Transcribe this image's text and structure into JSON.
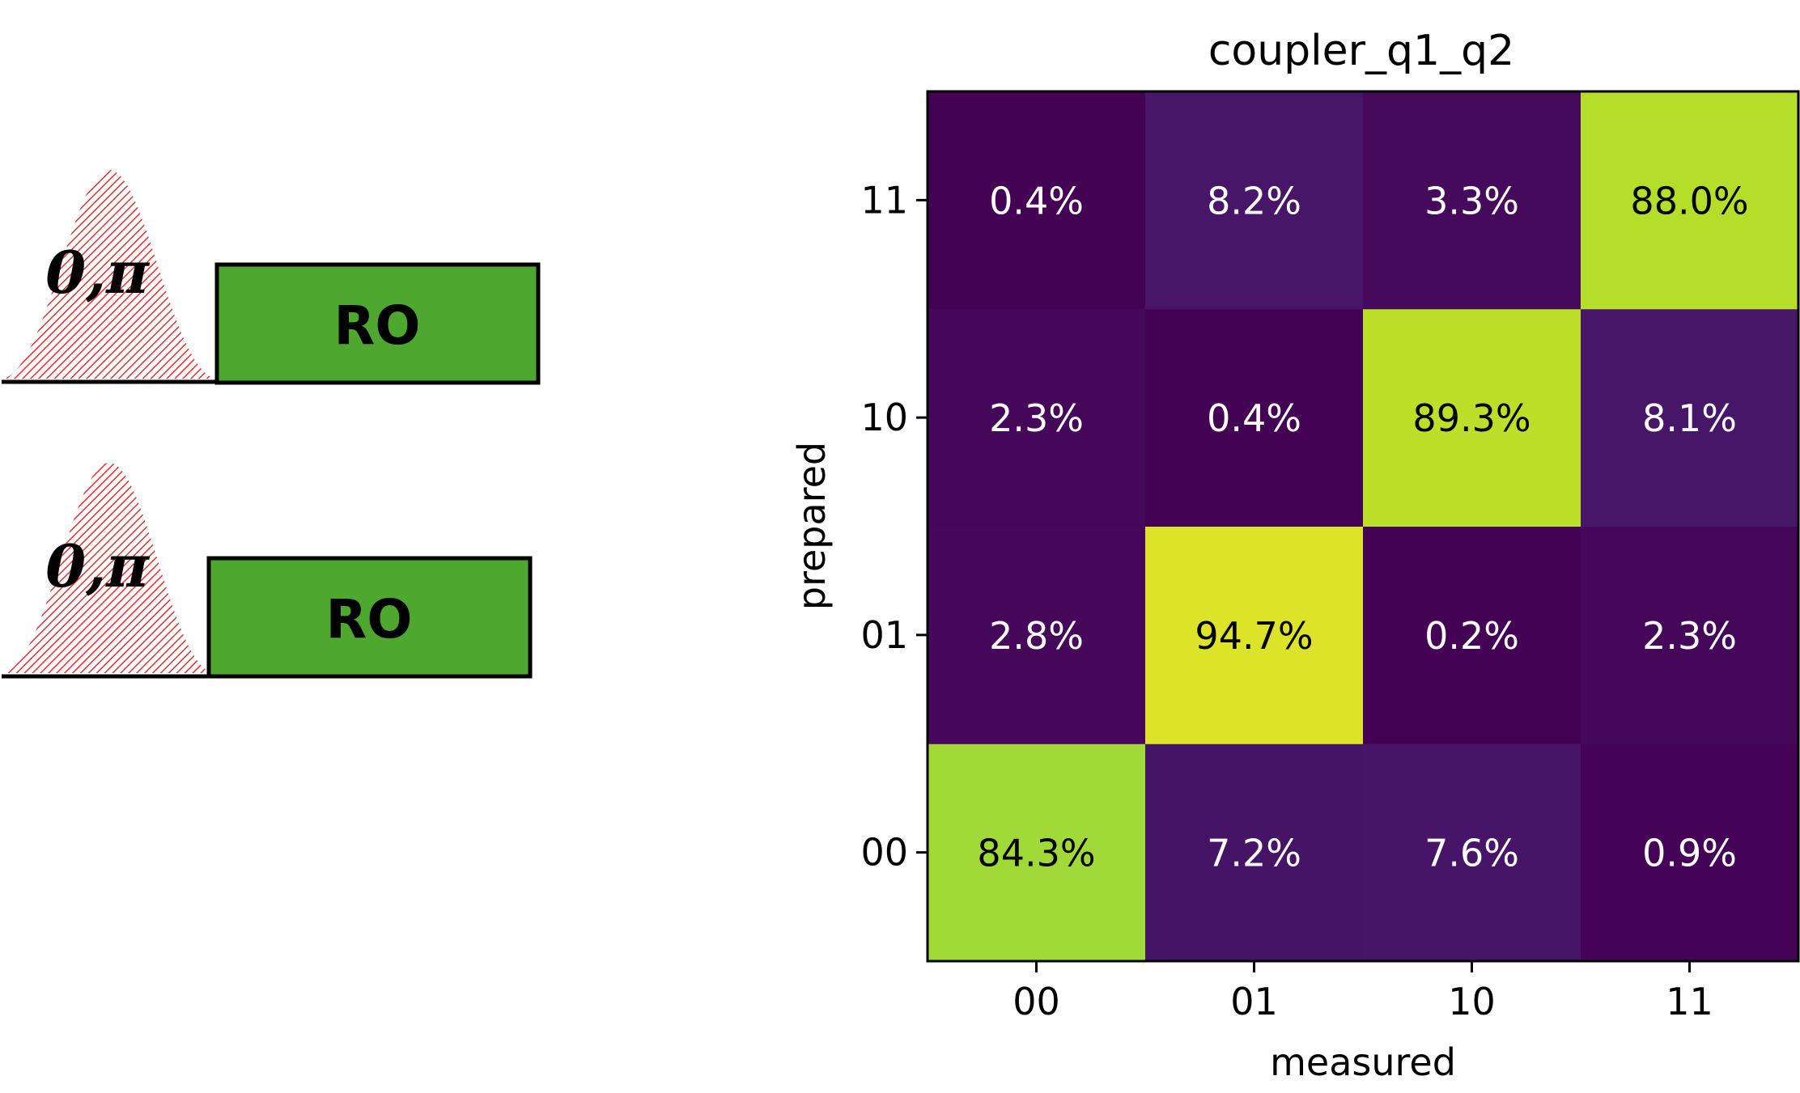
{
  "pulse_diagram": {
    "channels": [
      {
        "pulse_label": "0,π",
        "block_label": "RO"
      },
      {
        "pulse_label": "0,π",
        "block_label": "RO"
      }
    ],
    "colors": {
      "pulse_hatch": "#e03030",
      "ro_fill": "#4ea72e",
      "outline": "#000000"
    }
  },
  "chart_data": {
    "type": "heatmap",
    "title": "coupler_q1_q2",
    "xlabel": "measured",
    "ylabel": "prepared",
    "x_categories": [
      "00",
      "01",
      "10",
      "11"
    ],
    "y_categories": [
      "00",
      "01",
      "10",
      "11"
    ],
    "values": [
      [
        84.3,
        7.2,
        7.6,
        0.9
      ],
      [
        2.8,
        94.7,
        0.2,
        2.3
      ],
      [
        2.3,
        0.4,
        89.3,
        8.1
      ],
      [
        0.4,
        8.2,
        3.3,
        88.0
      ]
    ],
    "value_format": "percent, 1 decimal",
    "colormap": "viridis",
    "color_range": [
      0,
      100
    ],
    "grid": false,
    "legend": "none"
  }
}
